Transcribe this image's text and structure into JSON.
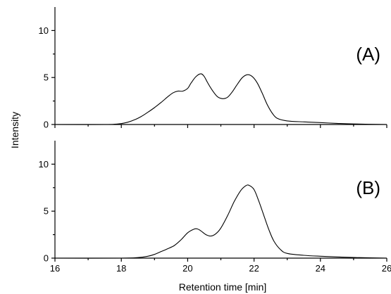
{
  "chart_data": [
    {
      "type": "line",
      "panel_label": "(A)",
      "xlabel": "Retention time [min]",
      "ylabel": "Intensity",
      "xlim": [
        16,
        26
      ],
      "ylim": [
        0,
        12.5
      ],
      "x_ticks": [
        16,
        18,
        20,
        22,
        24,
        26
      ],
      "y_ticks": [
        0,
        5,
        10
      ],
      "grid": false,
      "series": [
        {
          "x": [
            16.0,
            17.5,
            17.8,
            18.0,
            18.2,
            18.4,
            18.6,
            18.8,
            19.0,
            19.2,
            19.4,
            19.55,
            19.7,
            19.85,
            20.0,
            20.1,
            20.25,
            20.4,
            20.5,
            20.6,
            20.75,
            20.9,
            21.05,
            21.2,
            21.35,
            21.5,
            21.65,
            21.8,
            21.95,
            22.1,
            22.25,
            22.4,
            22.55,
            22.7,
            23.0,
            23.5,
            24.0,
            24.5,
            25.0,
            26.0
          ],
          "y": [
            0.0,
            0.0,
            0.03,
            0.1,
            0.25,
            0.5,
            0.85,
            1.3,
            1.8,
            2.35,
            2.95,
            3.35,
            3.55,
            3.55,
            3.85,
            4.4,
            5.1,
            5.4,
            5.1,
            4.45,
            3.6,
            2.95,
            2.75,
            2.9,
            3.5,
            4.3,
            5.0,
            5.3,
            5.1,
            4.4,
            3.3,
            2.1,
            1.2,
            0.65,
            0.38,
            0.28,
            0.2,
            0.12,
            0.06,
            0.0
          ]
        }
      ]
    },
    {
      "type": "line",
      "panel_label": "(B)",
      "xlabel": "Retention time [min]",
      "ylabel": "Intensity",
      "xlim": [
        16,
        26
      ],
      "ylim": [
        0,
        12.5
      ],
      "x_ticks": [
        16,
        18,
        20,
        22,
        24,
        26
      ],
      "y_ticks": [
        0,
        5,
        10
      ],
      "grid": false,
      "series": [
        {
          "x": [
            16.0,
            18.0,
            18.5,
            18.8,
            19.0,
            19.2,
            19.4,
            19.6,
            19.8,
            20.0,
            20.2,
            20.3,
            20.4,
            20.55,
            20.7,
            20.85,
            21.0,
            21.2,
            21.4,
            21.6,
            21.75,
            21.85,
            22.0,
            22.15,
            22.3,
            22.45,
            22.6,
            22.8,
            23.0,
            23.5,
            24.0,
            25.0,
            26.0
          ],
          "y": [
            0.0,
            0.0,
            0.06,
            0.2,
            0.4,
            0.7,
            1.0,
            1.35,
            1.95,
            2.7,
            3.1,
            3.1,
            2.9,
            2.5,
            2.35,
            2.6,
            3.2,
            4.5,
            6.0,
            7.2,
            7.7,
            7.75,
            7.3,
            6.0,
            4.5,
            3.0,
            1.8,
            0.9,
            0.5,
            0.3,
            0.2,
            0.07,
            0.0
          ]
        }
      ]
    }
  ]
}
